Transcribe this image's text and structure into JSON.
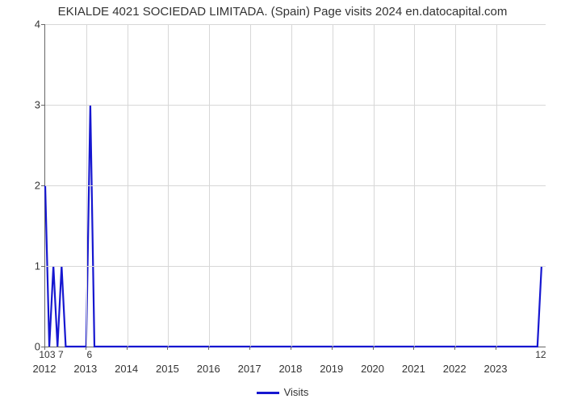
{
  "chart": {
    "type": "line",
    "title": "EKIALDE 4021 SOCIEDAD LIMITADA. (Spain) Page visits 2024 en.datocapital.com",
    "title_fontsize": 15,
    "title_color": "#333333",
    "background_color": "#ffffff",
    "grid_color": "#d7d7d7",
    "axis_color": "#666666",
    "tick_label_color": "#333333",
    "tick_label_fontsize": 13,
    "point_label_fontsize": 12,
    "series_color": "#1617d0",
    "line_width": 2.2,
    "legend_label": "Visits",
    "x_axis": {
      "min": 2012,
      "max": 2024.2,
      "ticks": [
        2012,
        2013,
        2014,
        2015,
        2016,
        2017,
        2018,
        2019,
        2020,
        2021,
        2022,
        2023
      ]
    },
    "y_axis": {
      "min": 0,
      "max": 4,
      "ticks": [
        0,
        1,
        2,
        3,
        4
      ]
    },
    "data": [
      {
        "x": 2012.0,
        "y": 2,
        "label": "10"
      },
      {
        "x": 2012.1,
        "y": 0,
        "label": ""
      },
      {
        "x": 2012.2,
        "y": 1,
        "label": "3"
      },
      {
        "x": 2012.3,
        "y": 0,
        "label": ""
      },
      {
        "x": 2012.4,
        "y": 1,
        "label": "7"
      },
      {
        "x": 2012.5,
        "y": 0,
        "label": ""
      },
      {
        "x": 2013.0,
        "y": 0,
        "label": ""
      },
      {
        "x": 2013.1,
        "y": 3,
        "label": "6"
      },
      {
        "x": 2013.2,
        "y": 0,
        "label": ""
      },
      {
        "x": 2024.0,
        "y": 0,
        "label": ""
      },
      {
        "x": 2024.1,
        "y": 1,
        "label": "12"
      }
    ]
  }
}
